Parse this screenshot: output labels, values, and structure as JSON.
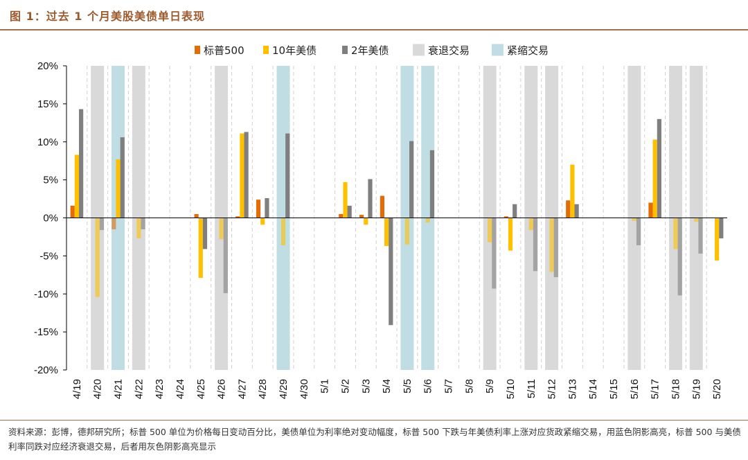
{
  "figure": {
    "title": "图 1：过去 1 个月美股美债单日表现",
    "source": "资料来源：彭博，德邦研究所；标普 500 单位为价格每日变动百分比，美债单位为利率绝对变动幅度，标普 500 下跌与年美债利率上涨对应货政紧缩交易，用蓝色阴影高亮，标普 500 与美债利率同跌对应经济衰退交易，后者用灰色阴影高亮显示"
  },
  "colors": {
    "sp500": "#E36C09",
    "t10": "#FFC000",
    "t2": "#7F7F7F",
    "recession_shade": "#D9D9D9",
    "tightening_shade": "#BFDDE3",
    "accent": "#9C5A2C"
  },
  "chart_data": {
    "type": "bar",
    "categories": [
      "4/19",
      "4/20",
      "4/21",
      "4/22",
      "4/23",
      "4/24",
      "4/25",
      "4/26",
      "4/27",
      "4/28",
      "4/29",
      "4/30",
      "5/1",
      "5/2",
      "5/3",
      "5/4",
      "5/5",
      "5/6",
      "5/7",
      "5/8",
      "5/9",
      "5/10",
      "5/11",
      "5/12",
      "5/13",
      "5/14",
      "5/15",
      "5/16",
      "5/17",
      "5/18",
      "5/19",
      "5/20"
    ],
    "series": [
      {
        "name": "标普500",
        "values": [
          1.6,
          0,
          -1.5,
          0,
          0,
          0,
          0.5,
          0,
          0.2,
          2.4,
          0,
          0,
          0,
          0.5,
          0.4,
          2.9,
          0,
          0,
          0,
          0,
          0,
          0.2,
          0,
          0,
          2.3,
          0,
          0,
          0,
          2.0,
          0,
          0,
          0
        ]
      },
      {
        "name": "10年美债",
        "values": [
          8.3,
          -10.4,
          7.7,
          -2.7,
          0,
          0,
          -7.9,
          -2.8,
          11.1,
          -0.9,
          -3.6,
          0,
          0,
          4.7,
          -0.9,
          -3.7,
          -3.5,
          -0.6,
          0,
          0,
          -3.2,
          -4.3,
          -1.6,
          -7.1,
          7.0,
          0,
          0,
          -0.4,
          10.3,
          -4.1,
          -0.5,
          -5.6
        ]
      },
      {
        "name": "2年美债",
        "values": [
          14.3,
          -1.6,
          10.6,
          -1.5,
          0,
          0,
          -4.1,
          -9.9,
          11.3,
          2.6,
          11.1,
          0,
          0,
          1.6,
          5.1,
          -14.1,
          10.1,
          8.9,
          0,
          0,
          -9.3,
          1.8,
          -7.0,
          -7.8,
          1.8,
          0,
          0,
          -3.6,
          13.0,
          -10.2,
          -4.7,
          -2.7
        ]
      }
    ],
    "shading": {
      "recession": [
        1,
        3,
        7,
        20,
        22,
        23,
        27,
        29,
        30
      ],
      "tightening": [
        2,
        10,
        16,
        17
      ]
    },
    "legend": [
      "标普500",
      "10年美债",
      "2年美债",
      "衰退交易",
      "紧缩交易"
    ],
    "y_ticks": [
      "20%",
      "15%",
      "10%",
      "5%",
      "0%",
      "-5%",
      "-10%",
      "-15%",
      "-20%"
    ],
    "ylim": [
      -20,
      20
    ],
    "grid": false,
    "legend_position": "top"
  }
}
